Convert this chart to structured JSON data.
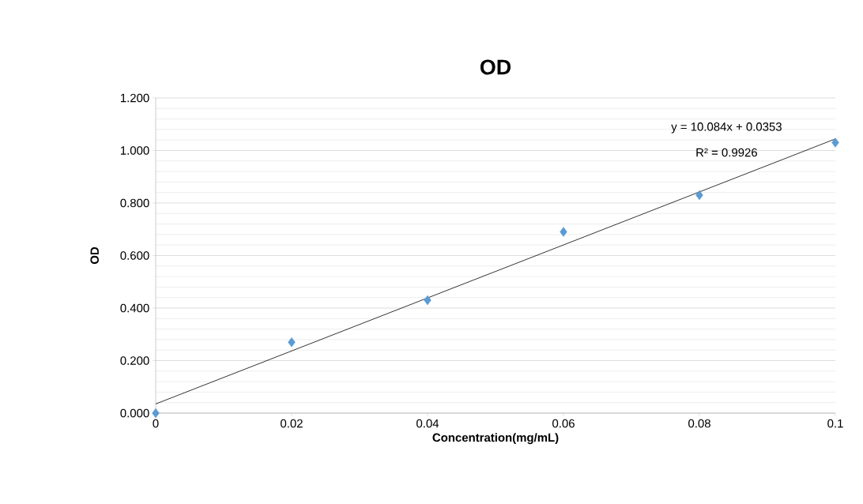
{
  "chart_data": {
    "type": "scatter",
    "title": "OD",
    "xlabel": "Concentration(mg/mL)",
    "ylabel": "OD",
    "series": [
      {
        "color": "#5b9bd5",
        "marker": "diamond",
        "x": [
          0,
          0.02,
          0.04,
          0.06,
          0.08,
          0.1
        ],
        "values": [
          0.0,
          0.27,
          0.43,
          0.69,
          0.83,
          1.03
        ]
      },
      {
        "type": "line",
        "color": "#000000",
        "marker": "none",
        "x": [
          0,
          0.1
        ],
        "values": [
          0.035,
          1.044
        ]
      }
    ],
    "annotations": [
      "y = 10.084x + 0.0353",
      "R² = 0.9926"
    ],
    "xlim": [
      0,
      0.1
    ],
    "ylim": [
      0,
      1.2
    ],
    "xticks": [
      0,
      0.02,
      0.04,
      0.06,
      0.08,
      0.1
    ],
    "yticks": [
      {
        "value": 0,
        "label": "0.000"
      },
      {
        "value": 0.2,
        "label": "0.200"
      },
      {
        "value": 0.4,
        "label": "0.400"
      },
      {
        "value": 0.6,
        "label": "0.600"
      },
      {
        "value": 0.8,
        "label": "0.800"
      },
      {
        "value": 1.0,
        "label": "1.000"
      },
      {
        "value": 1.2,
        "label": "1.200"
      }
    ],
    "grid": "y"
  }
}
